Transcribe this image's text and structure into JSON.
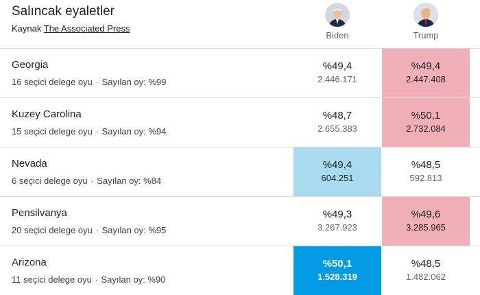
{
  "header": {
    "title": "Salıncak eyaletler",
    "source_prefix": "Kaynak",
    "source_link": "The Associated Press"
  },
  "candidates": {
    "biden": {
      "name": "Biden",
      "icon": "biden-avatar-icon"
    },
    "trump": {
      "name": "Trump",
      "icon": "trump-avatar-icon"
    }
  },
  "colors": {
    "trump_win": "#f1b0b7",
    "biden_lead": "#a8dbf0",
    "biden_win": "#039be5"
  },
  "meta_labels": {
    "electors_suffix": "seçici delege oyu",
    "counted_prefix": "Sayılan oy:"
  },
  "states": [
    {
      "name": "Georgia",
      "electors": "16 seçici delege oyu",
      "counted": "Sayılan oy: %99",
      "biden_pct": "%49,4",
      "biden_votes": "2.446.171",
      "trump_pct": "%49,4",
      "trump_votes": "2.447.408",
      "highlight": "trump"
    },
    {
      "name": "Kuzey Carolina",
      "electors": "15 seçici delege oyu",
      "counted": "Sayılan oy: %94",
      "biden_pct": "%48,7",
      "biden_votes": "2.655.383",
      "trump_pct": "%50,1",
      "trump_votes": "2.732.084",
      "highlight": "trump"
    },
    {
      "name": "Nevada",
      "electors": "6 seçici delege oyu",
      "counted": "Sayılan oy: %84",
      "biden_pct": "%49,4",
      "biden_votes": "604.251",
      "trump_pct": "%48,5",
      "trump_votes": "592.813",
      "highlight": "biden-light"
    },
    {
      "name": "Pensilvanya",
      "electors": "20 seçici delege oyu",
      "counted": "Sayılan oy: %95",
      "biden_pct": "%49,3",
      "biden_votes": "3.267.923",
      "trump_pct": "%49,6",
      "trump_votes": "3.285.965",
      "highlight": "trump"
    },
    {
      "name": "Arizona",
      "electors": "11 seçici delege oyu",
      "counted": "Sayılan oy: %90",
      "biden_pct": "%50,1",
      "biden_votes": "1.528.319",
      "trump_pct": "%48,5",
      "trump_votes": "1.482.062",
      "highlight": "biden-win"
    }
  ]
}
